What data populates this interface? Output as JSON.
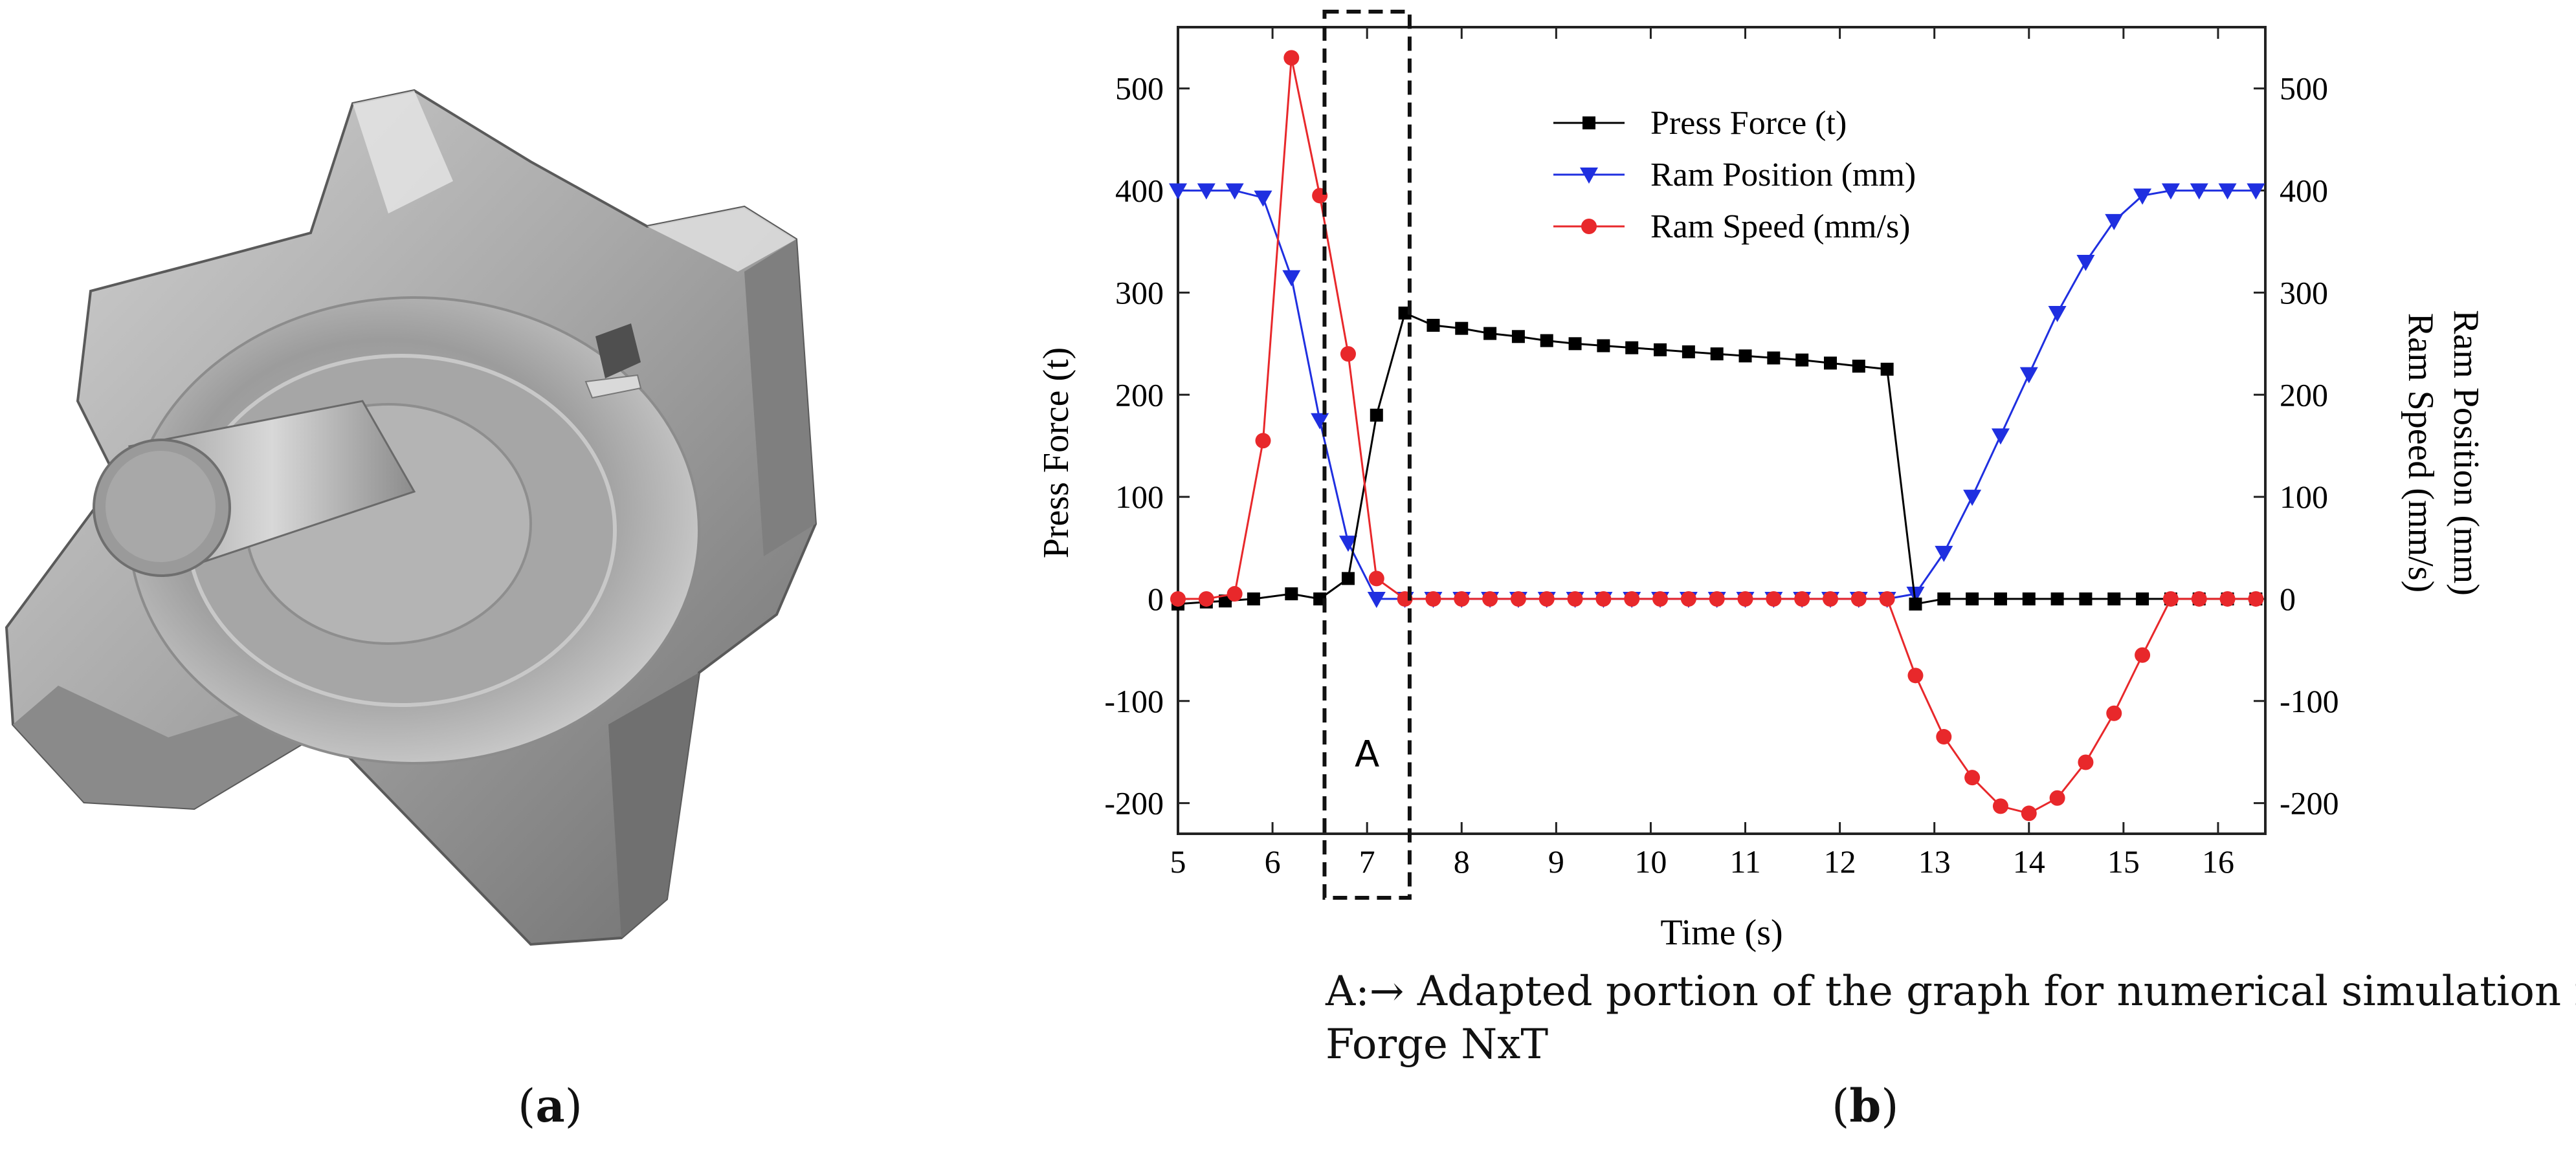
{
  "part_image": {
    "name": "forged-part-render"
  },
  "chart_data": {
    "type": "line",
    "title": "",
    "xlabel": "Time (s)",
    "ylabel_left": "Press Force (t)",
    "ylabel_right_1": "Ram Position (mm)",
    "ylabel_right_2": "Ram Speed (mm/s)",
    "xlim": [
      5,
      16.5
    ],
    "ylim": [
      -230,
      560
    ],
    "xticks": [
      5,
      6,
      7,
      8,
      9,
      10,
      11,
      12,
      13,
      14,
      15,
      16
    ],
    "yticks": [
      -200,
      -100,
      0,
      100,
      200,
      300,
      400,
      500
    ],
    "legend_position": "top-center",
    "series": [
      {
        "name": "Press Force (t)",
        "color": "#000000",
        "marker": "square",
        "x": [
          5.0,
          5.3,
          5.5,
          5.8,
          6.2,
          6.5,
          6.8,
          7.1,
          7.4,
          7.7,
          8.0,
          8.3,
          8.6,
          8.9,
          9.2,
          9.5,
          9.8,
          10.1,
          10.4,
          10.7,
          11.0,
          11.3,
          11.6,
          11.9,
          12.2,
          12.5,
          12.8,
          13.1,
          13.4,
          13.7,
          14.0,
          14.3,
          14.6,
          14.9,
          15.2,
          15.5,
          15.8,
          16.1,
          16.4
        ],
        "y": [
          -5,
          -3,
          -2,
          0,
          5,
          0,
          20,
          180,
          280,
          268,
          265,
          260,
          257,
          253,
          250,
          248,
          246,
          244,
          242,
          240,
          238,
          236,
          234,
          231,
          228,
          225,
          -5,
          0,
          0,
          0,
          0,
          0,
          0,
          0,
          0,
          0,
          0,
          0,
          0
        ]
      },
      {
        "name": "Ram Position (mm)",
        "color": "#1f2fe0",
        "marker": "triangle-down",
        "x": [
          5.0,
          5.3,
          5.6,
          5.9,
          6.2,
          6.5,
          6.8,
          7.1,
          7.4,
          7.7,
          8.0,
          8.3,
          8.6,
          8.9,
          9.2,
          9.5,
          9.8,
          10.1,
          10.4,
          10.7,
          11.0,
          11.3,
          11.6,
          11.9,
          12.2,
          12.5,
          12.8,
          13.1,
          13.4,
          13.7,
          14.0,
          14.3,
          14.6,
          14.9,
          15.2,
          15.5,
          15.8,
          16.1,
          16.4
        ],
        "y": [
          400,
          400,
          400,
          393,
          315,
          175,
          55,
          0,
          0,
          0,
          0,
          0,
          0,
          0,
          0,
          0,
          0,
          0,
          0,
          0,
          0,
          0,
          0,
          0,
          0,
          0,
          5,
          45,
          100,
          160,
          220,
          280,
          330,
          370,
          395,
          400,
          400,
          400,
          400
        ]
      },
      {
        "name": "Ram Speed (mm/s)",
        "color": "#e8282b",
        "marker": "circle",
        "x": [
          5.0,
          5.3,
          5.6,
          5.9,
          6.2,
          6.5,
          6.8,
          7.1,
          7.4,
          7.7,
          8.0,
          8.3,
          8.6,
          8.9,
          9.2,
          9.5,
          9.8,
          10.1,
          10.4,
          10.7,
          11.0,
          11.3,
          11.6,
          11.9,
          12.2,
          12.5,
          12.8,
          13.1,
          13.4,
          13.7,
          14.0,
          14.3,
          14.6,
          14.9,
          15.2,
          15.5,
          15.8,
          16.1,
          16.4
        ],
        "y": [
          0,
          0,
          5,
          155,
          530,
          395,
          240,
          20,
          0,
          0,
          0,
          0,
          0,
          0,
          0,
          0,
          0,
          0,
          0,
          0,
          0,
          0,
          0,
          0,
          0,
          0,
          -75,
          -135,
          -175,
          -203,
          -210,
          -195,
          -160,
          -112,
          -55,
          0,
          0,
          0,
          0
        ]
      }
    ],
    "annotations": [
      {
        "name": "region-A",
        "label": "A",
        "x_range": [
          6.55,
          7.45
        ],
        "style": "dashed box"
      }
    ]
  },
  "caption": {
    "line1": "A:→ Adapted portion of the graph for numerical simulation in",
    "line2": "Forge NxT"
  },
  "panel_labels": {
    "a": "a",
    "b": "b"
  }
}
